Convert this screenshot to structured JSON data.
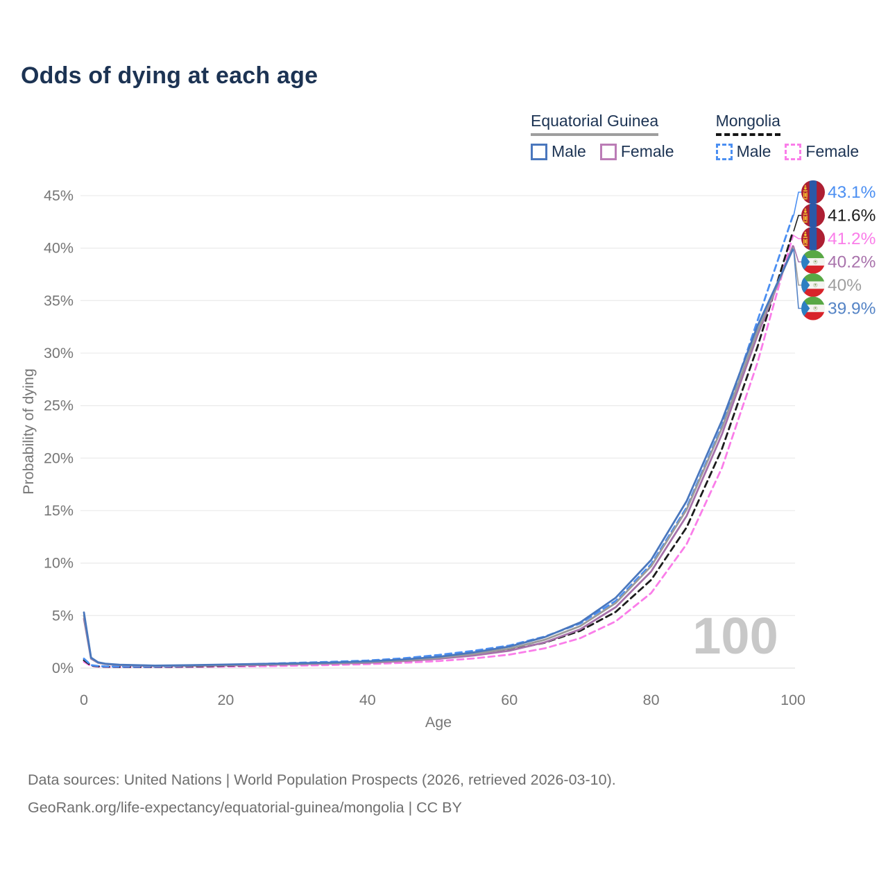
{
  "title": "Odds of dying at each age",
  "legend": {
    "groups": [
      {
        "title": "Equatorial Guinea",
        "underline": "solid",
        "underline_color": "#9e9e9e",
        "items": [
          {
            "label": "Male",
            "color": "#4a77bd",
            "dashed": false
          },
          {
            "label": "Female",
            "color": "#bb7cb6",
            "dashed": false
          }
        ]
      },
      {
        "title": "Mongolia",
        "underline": "dashed",
        "underline_color": "#151515",
        "items": [
          {
            "label": "Male",
            "color": "#4b8ff2",
            "dashed": true
          },
          {
            "label": "Female",
            "color": "#fa7de9",
            "dashed": true
          }
        ]
      }
    ]
  },
  "chart_data": {
    "type": "line",
    "title": "Odds of dying at each age",
    "xlabel": "Age",
    "ylabel": "Probability of dying",
    "xlim": [
      0,
      100
    ],
    "ylim": [
      0,
      45
    ],
    "x_ticks": [
      0,
      20,
      40,
      60,
      80,
      100
    ],
    "y_ticks": [
      0,
      5,
      10,
      15,
      20,
      25,
      30,
      35,
      40,
      45
    ],
    "y_tick_suffix": "%",
    "grid": "horizontal",
    "legend_position": "top-right",
    "watermark": "100",
    "x": [
      0,
      1,
      2,
      3,
      5,
      10,
      15,
      20,
      25,
      30,
      35,
      40,
      45,
      50,
      55,
      60,
      65,
      70,
      75,
      80,
      85,
      90,
      95,
      100
    ],
    "series": [
      {
        "name": "Mongolia — Female",
        "color": "#fa7de9",
        "dashed": true,
        "values": [
          0.6,
          0.2,
          0.14,
          0.11,
          0.09,
          0.09,
          0.11,
          0.14,
          0.18,
          0.23,
          0.29,
          0.37,
          0.5,
          0.67,
          0.92,
          1.28,
          1.88,
          2.85,
          4.45,
          7.15,
          11.8,
          19.1,
          29.1,
          41.2
        ]
      },
      {
        "name": "Mongolia — Both sexes",
        "color": "#1c1c1c",
        "dashed": true,
        "values": [
          0.75,
          0.24,
          0.17,
          0.13,
          0.11,
          0.11,
          0.15,
          0.22,
          0.29,
          0.37,
          0.45,
          0.55,
          0.72,
          0.97,
          1.28,
          1.72,
          2.42,
          3.55,
          5.35,
          8.4,
          13.4,
          20.9,
          30.6,
          41.6
        ]
      },
      {
        "name": "Mongolia — Male",
        "color": "#4b8ff2",
        "dashed": true,
        "values": [
          0.9,
          0.28,
          0.2,
          0.16,
          0.13,
          0.13,
          0.19,
          0.3,
          0.4,
          0.5,
          0.6,
          0.72,
          0.93,
          1.25,
          1.65,
          2.15,
          3.0,
          4.25,
          6.4,
          9.9,
          15.3,
          23.1,
          33.1,
          43.1
        ]
      },
      {
        "name": "Equatorial Guinea — Female",
        "color": "#a671aa",
        "dashed": false,
        "values": [
          4.7,
          0.9,
          0.5,
          0.38,
          0.28,
          0.2,
          0.22,
          0.26,
          0.3,
          0.36,
          0.42,
          0.5,
          0.66,
          0.88,
          1.2,
          1.65,
          2.45,
          3.7,
          5.8,
          9.2,
          14.5,
          22.3,
          31.7,
          40.2
        ]
      },
      {
        "name": "Equatorial Guinea — Both sexes",
        "color": "#9b9b9b",
        "dashed": false,
        "values": [
          5.0,
          0.95,
          0.52,
          0.4,
          0.3,
          0.22,
          0.25,
          0.3,
          0.35,
          0.41,
          0.47,
          0.57,
          0.74,
          0.98,
          1.35,
          1.85,
          2.7,
          4.0,
          6.2,
          9.7,
          15.1,
          22.9,
          32.1,
          40.0
        ]
      },
      {
        "name": "Equatorial Guinea — Male",
        "color": "#4a77bd",
        "dashed": false,
        "values": [
          5.3,
          1.0,
          0.55,
          0.42,
          0.32,
          0.24,
          0.28,
          0.34,
          0.4,
          0.46,
          0.53,
          0.64,
          0.82,
          1.08,
          1.5,
          2.05,
          2.95,
          4.35,
          6.7,
          10.3,
          15.9,
          23.6,
          32.6,
          39.9
        ]
      }
    ],
    "end_labels": [
      {
        "value": "43.1%",
        "color": "#4b8ff2",
        "flag": "mongolia",
        "series": "Mongolia — Male"
      },
      {
        "value": "41.6%",
        "color": "#1c1c1c",
        "flag": "mongolia",
        "series": "Mongolia — Both sexes"
      },
      {
        "value": "41.2%",
        "color": "#fa7de9",
        "flag": "mongolia",
        "series": "Mongolia — Female"
      },
      {
        "value": "40.2%",
        "color": "#a973ac",
        "flag": "equatorial-guinea",
        "series": "Equatorial Guinea — Female"
      },
      {
        "value": "40%",
        "color": "#9e9e9e",
        "flag": "equatorial-guinea",
        "series": "Equatorial Guinea — Both sexes"
      },
      {
        "value": "39.9%",
        "color": "#5584c6",
        "flag": "equatorial-guinea",
        "series": "Equatorial Guinea — Male"
      }
    ]
  },
  "footer": {
    "line1": "Data sources: United Nations | World Population Prospects (2026, retrieved 2026-03-10).",
    "line2": "GeoRank.org/life-expectancy/equatorial-guinea/mongolia | CC BY"
  }
}
